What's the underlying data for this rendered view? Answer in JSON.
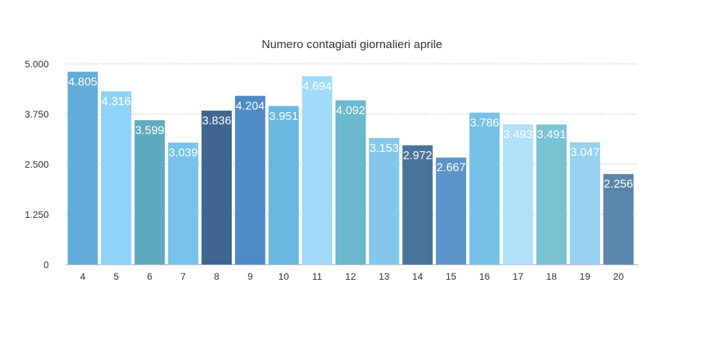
{
  "chart_data": {
    "type": "bar",
    "title": "Numero contagiati giornalieri aprile",
    "xlabel": "",
    "ylabel": "",
    "ylim": [
      0,
      5000
    ],
    "yticks": [
      0,
      1250,
      2500,
      3750,
      5000
    ],
    "ytick_labels": [
      "0",
      "1.250",
      "2.500",
      "3.750",
      "5.000"
    ],
    "grid": true,
    "legend": "none",
    "categories": [
      "4",
      "5",
      "6",
      "7",
      "8",
      "9",
      "10",
      "11",
      "12",
      "13",
      "14",
      "15",
      "16",
      "17",
      "18",
      "19",
      "20"
    ],
    "values": [
      4805,
      4316,
      3599,
      3039,
      3836,
      4204,
      3951,
      4694,
      4092,
      3153,
      2972,
      2667,
      3786,
      3493,
      3491,
      3047,
      2256
    ],
    "value_labels": [
      "4.805",
      "4.316",
      "3.599",
      "3.039",
      "3.836",
      "4.204",
      "3.951",
      "4.694",
      "4.092",
      "3.153",
      "2.972",
      "2.667",
      "3.786",
      "3.493",
      "3.491",
      "3.047",
      "2.256"
    ],
    "colors": [
      "#61acd8",
      "#8ed3f6",
      "#5fabbe",
      "#77c3eb",
      "#3f6690",
      "#4f8ac7",
      "#6ab7df",
      "#a2daf8",
      "#6ab9cf",
      "#84c7ea",
      "#4a7399",
      "#5b95c9",
      "#78c1e6",
      "#b0e0fa",
      "#7ac3d3",
      "#97d0f0",
      "#5b86ab"
    ]
  }
}
